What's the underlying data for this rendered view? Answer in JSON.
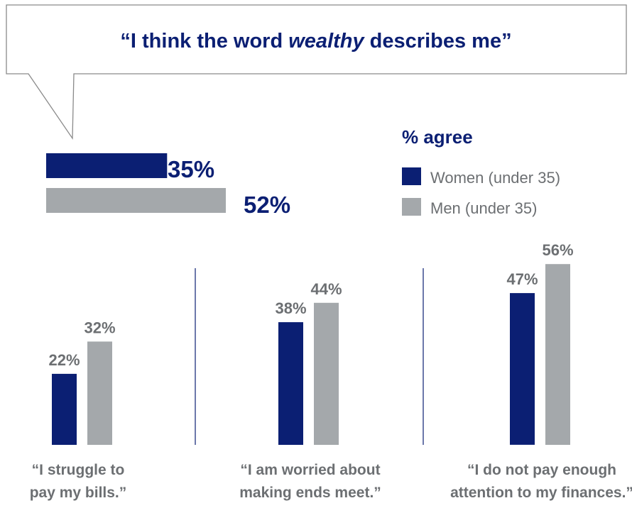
{
  "colors": {
    "women": "#0b1f73",
    "men": "#a4a8ab",
    "title": "#0b1f73",
    "value_text": "#6c6f72",
    "legend_text": "#6c6f72",
    "divider": "#0b1f73",
    "bubble_border": "#8a8a8a"
  },
  "chart_data": [
    {
      "type": "bar",
      "orientation": "horizontal",
      "title_parts": [
        "“I think the word ",
        "wealthy",
        " describes me”"
      ],
      "series": [
        {
          "name": "Women (under 35)",
          "value": 35,
          "label": "35%"
        },
        {
          "name": "Men (under 35)",
          "value": 52,
          "label": "52%"
        }
      ]
    },
    {
      "type": "bar",
      "orientation": "vertical",
      "categories": [
        [
          "“I struggle to",
          "pay my bills.”"
        ],
        [
          "“I am worried about",
          "making ends meet.”"
        ],
        [
          "“I do not pay enough",
          "attention to my finances.”"
        ]
      ],
      "series": [
        {
          "name": "Women (under 35)",
          "values": [
            22,
            38,
            47
          ],
          "labels": [
            "22%",
            "38%",
            "47%"
          ]
        },
        {
          "name": "Men (under 35)",
          "values": [
            32,
            44,
            56
          ],
          "labels": [
            "32%",
            "44%",
            "56%"
          ]
        }
      ]
    }
  ],
  "legend": {
    "title": "% agree",
    "items": [
      {
        "label": "Women (under 35)",
        "color_key": "women"
      },
      {
        "label": "Men (under 35)",
        "color_key": "men"
      }
    ]
  }
}
